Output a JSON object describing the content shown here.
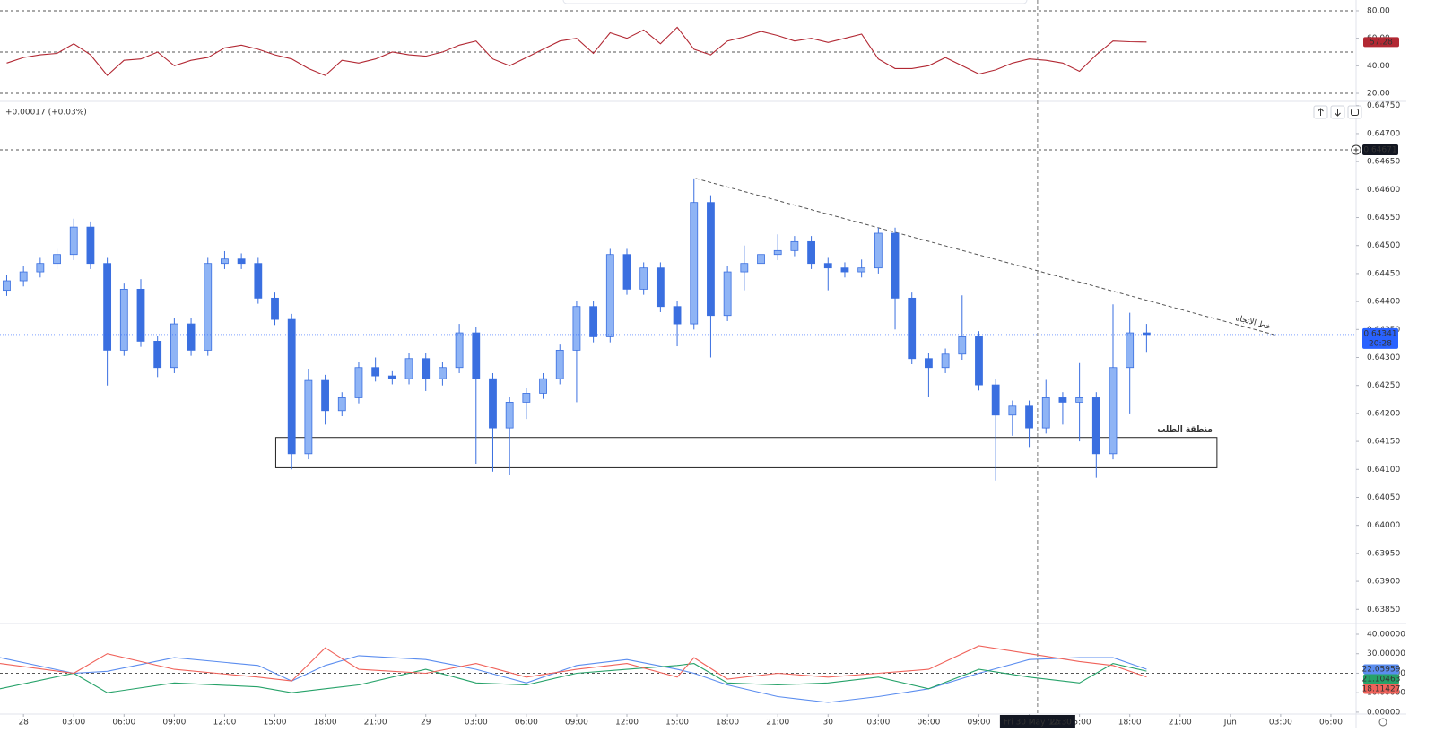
{
  "chart_data": [
    {
      "type": "line",
      "x": [
        -1,
        0,
        1,
        2,
        3,
        4,
        5,
        6,
        7,
        8,
        9,
        10,
        11,
        12,
        13,
        14,
        15,
        16,
        17,
        18,
        19,
        20,
        21,
        22,
        23,
        24,
        25,
        26,
        27,
        28,
        29,
        30,
        31,
        32,
        33,
        34,
        35,
        36,
        37,
        38,
        39,
        40,
        41,
        42,
        43,
        44,
        45,
        46,
        47,
        48,
        49,
        50,
        51,
        52,
        53,
        54,
        55,
        56,
        57,
        58,
        59,
        60,
        61,
        62,
        63,
        64,
        65,
        66,
        67
      ],
      "series": [
        {
          "color": "#b22833",
          "values": [
            42,
            46,
            48,
            49,
            56,
            48,
            33,
            44,
            45,
            50,
            40,
            44,
            46,
            53,
            55,
            52,
            48,
            45,
            38,
            33,
            44,
            42,
            45,
            50,
            48,
            47,
            50,
            55,
            58,
            45,
            40,
            46,
            52,
            58,
            60,
            49,
            64,
            60,
            66,
            56,
            68,
            52,
            48,
            58,
            61,
            65,
            62,
            58,
            60,
            57,
            60,
            63,
            45,
            38,
            38,
            40,
            46,
            40,
            34,
            37,
            42,
            45,
            44,
            42,
            36,
            48,
            58,
            57.5,
            57.28
          ]
        }
      ],
      "xlim": [
        -1.4,
        79.5
      ],
      "ylim": [
        14.8,
        87.8
      ],
      "yticks": [
        {
          "value": 80,
          "label": "80.00"
        },
        {
          "value": 60,
          "label": "60.00"
        },
        {
          "value": 40,
          "label": "40.00"
        },
        {
          "value": 20,
          "label": "20.00"
        }
      ],
      "bands": [
        80,
        50,
        20
      ],
      "last_badge": true
    },
    {
      "type": "candlestick",
      "x": [
        -1,
        0,
        1,
        2,
        3,
        4,
        5,
        6,
        7,
        8,
        9,
        10,
        11,
        12,
        13,
        14,
        15,
        16,
        17,
        18,
        19,
        20,
        21,
        22,
        23,
        24,
        25,
        26,
        27,
        28,
        29,
        30,
        31,
        32,
        33,
        34,
        35,
        36,
        37,
        38,
        39,
        40,
        41,
        42,
        43,
        44,
        45,
        46,
        47,
        48,
        49,
        50,
        51,
        52,
        53,
        54,
        55,
        56,
        57,
        58,
        59,
        60,
        61,
        62,
        63,
        64,
        65,
        66,
        67
      ],
      "ohlc": [
        [
          0.6442,
          0.64447,
          0.6441,
          0.64437
        ],
        [
          0.64437,
          0.64463,
          0.64427,
          0.64453
        ],
        [
          0.64453,
          0.64478,
          0.64443,
          0.64468
        ],
        [
          0.64468,
          0.64494,
          0.64458,
          0.64484
        ],
        [
          0.64484,
          0.64548,
          0.64474,
          0.64533
        ],
        [
          0.64533,
          0.64543,
          0.64458,
          0.64468
        ],
        [
          0.64468,
          0.64478,
          0.6425,
          0.64313
        ],
        [
          0.64313,
          0.64432,
          0.64303,
          0.64422
        ],
        [
          0.64422,
          0.6444,
          0.64319,
          0.64329
        ],
        [
          0.64329,
          0.64339,
          0.64265,
          0.64282
        ],
        [
          0.64282,
          0.6437,
          0.64272,
          0.6436
        ],
        [
          0.6436,
          0.6437,
          0.64303,
          0.64313
        ],
        [
          0.64313,
          0.64478,
          0.64303,
          0.64468
        ],
        [
          0.64468,
          0.6449,
          0.64458,
          0.64476
        ],
        [
          0.64476,
          0.64486,
          0.64458,
          0.64468
        ],
        [
          0.64468,
          0.64478,
          0.64396,
          0.64406
        ],
        [
          0.64406,
          0.64416,
          0.64358,
          0.64368
        ],
        [
          0.64368,
          0.64378,
          0.641,
          0.64128
        ],
        [
          0.64128,
          0.6428,
          0.64118,
          0.64259
        ],
        [
          0.64259,
          0.64269,
          0.6418,
          0.64205
        ],
        [
          0.64205,
          0.64238,
          0.64195,
          0.64228
        ],
        [
          0.64228,
          0.64292,
          0.64218,
          0.64282
        ],
        [
          0.64282,
          0.643,
          0.64257,
          0.64267
        ],
        [
          0.64267,
          0.64277,
          0.64252,
          0.64262
        ],
        [
          0.64262,
          0.64308,
          0.64252,
          0.64298
        ],
        [
          0.64298,
          0.64308,
          0.6424,
          0.64262
        ],
        [
          0.64262,
          0.64292,
          0.6425,
          0.64282
        ],
        [
          0.64282,
          0.6436,
          0.64272,
          0.64344
        ],
        [
          0.64344,
          0.64354,
          0.6411,
          0.64262
        ],
        [
          0.64262,
          0.64272,
          0.64096,
          0.64174
        ],
        [
          0.64174,
          0.6423,
          0.6409,
          0.6422
        ],
        [
          0.6422,
          0.64246,
          0.6419,
          0.64236
        ],
        [
          0.64236,
          0.64272,
          0.64226,
          0.64262
        ],
        [
          0.64262,
          0.64323,
          0.64252,
          0.64313
        ],
        [
          0.64313,
          0.64401,
          0.6422,
          0.64391
        ],
        [
          0.64391,
          0.64401,
          0.64327,
          0.64337
        ],
        [
          0.64337,
          0.64494,
          0.64327,
          0.64484
        ],
        [
          0.64484,
          0.64494,
          0.64412,
          0.64422
        ],
        [
          0.64422,
          0.6447,
          0.64412,
          0.6446
        ],
        [
          0.6446,
          0.6447,
          0.64381,
          0.64391
        ],
        [
          0.64391,
          0.64401,
          0.6432,
          0.6436
        ],
        [
          0.6436,
          0.6462,
          0.6435,
          0.64577
        ],
        [
          0.64577,
          0.6459,
          0.643,
          0.64375
        ],
        [
          0.64375,
          0.64463,
          0.64365,
          0.64453
        ],
        [
          0.64453,
          0.645,
          0.6442,
          0.64468
        ],
        [
          0.64468,
          0.6451,
          0.64458,
          0.64484
        ],
        [
          0.64484,
          0.6452,
          0.64474,
          0.64491
        ],
        [
          0.64491,
          0.64517,
          0.64481,
          0.64507
        ],
        [
          0.64507,
          0.64517,
          0.64458,
          0.64468
        ],
        [
          0.64468,
          0.64478,
          0.6442,
          0.6446
        ],
        [
          0.6446,
          0.6447,
          0.64443,
          0.64453
        ],
        [
          0.64453,
          0.64475,
          0.64443,
          0.6446
        ],
        [
          0.6446,
          0.64532,
          0.6445,
          0.64522
        ],
        [
          0.64522,
          0.64532,
          0.6435,
          0.64406
        ],
        [
          0.64406,
          0.64416,
          0.64288,
          0.64298
        ],
        [
          0.64298,
          0.64308,
          0.6423,
          0.64282
        ],
        [
          0.64282,
          0.64316,
          0.64272,
          0.64306
        ],
        [
          0.64306,
          0.64411,
          0.64296,
          0.64337
        ],
        [
          0.64337,
          0.64347,
          0.64241,
          0.64251
        ],
        [
          0.64251,
          0.64261,
          0.6408,
          0.64197
        ],
        [
          0.64197,
          0.64223,
          0.6416,
          0.64213
        ],
        [
          0.64213,
          0.64223,
          0.6414,
          0.64174
        ],
        [
          0.64174,
          0.6426,
          0.64164,
          0.64228
        ],
        [
          0.64228,
          0.64238,
          0.6418,
          0.6422
        ],
        [
          0.6422,
          0.6429,
          0.6415,
          0.64228
        ],
        [
          0.64228,
          0.64238,
          0.64085,
          0.64128
        ],
        [
          0.64128,
          0.64395,
          0.64118,
          0.64282
        ],
        [
          0.64282,
          0.6438,
          0.642,
          0.64344
        ],
        [
          0.64344,
          0.6436,
          0.6431,
          0.64341
        ]
      ],
      "up_color": "#8fb4f5",
      "down_color": "#3a6fe0",
      "xlim": [
        -1.4,
        79.5
      ],
      "ylim": [
        0.63828,
        0.64756
      ],
      "yticks": [
        {
          "value": 0.6475,
          "label": "0.64750"
        },
        {
          "value": 0.647,
          "label": "0.64700"
        },
        {
          "value": 0.6465,
          "label": "0.64650"
        },
        {
          "value": 0.646,
          "label": "0.64600"
        },
        {
          "value": 0.6455,
          "label": "0.64550"
        },
        {
          "value": 0.645,
          "label": "0.64500"
        },
        {
          "value": 0.6445,
          "label": "0.64450"
        },
        {
          "value": 0.644,
          "label": "0.64400"
        },
        {
          "value": 0.6435,
          "label": "0.64350"
        },
        {
          "value": 0.643,
          "label": "0.64300"
        },
        {
          "value": 0.6425,
          "label": "0.64250"
        },
        {
          "value": 0.642,
          "label": "0.64200"
        },
        {
          "value": 0.6415,
          "label": "0.64150"
        },
        {
          "value": 0.641,
          "label": "0.64100"
        },
        {
          "value": 0.6405,
          "label": "0.64050"
        },
        {
          "value": 0.64,
          "label": "0.64000"
        },
        {
          "value": 0.6395,
          "label": "0.63950"
        },
        {
          "value": 0.639,
          "label": "0.63900"
        },
        {
          "value": 0.6385,
          "label": "0.63850"
        }
      ],
      "xticks": [
        {
          "value": 0,
          "label": "28"
        },
        {
          "value": 3,
          "label": "03:00"
        },
        {
          "value": 6,
          "label": "06:00"
        },
        {
          "value": 9,
          "label": "09:00"
        },
        {
          "value": 12,
          "label": "12:00"
        },
        {
          "value": 15,
          "label": "15:00"
        },
        {
          "value": 18,
          "label": "18:00"
        },
        {
          "value": 21,
          "label": "21:00"
        },
        {
          "value": 24,
          "label": "29"
        },
        {
          "value": 27,
          "label": "03:00"
        },
        {
          "value": 30,
          "label": "06:00"
        },
        {
          "value": 33,
          "label": "09:00"
        },
        {
          "value": 36,
          "label": "12:00"
        },
        {
          "value": 39,
          "label": "15:00"
        },
        {
          "value": 42,
          "label": "18:00"
        },
        {
          "value": 45,
          "label": "21:00"
        },
        {
          "value": 48,
          "label": "30"
        },
        {
          "value": 51,
          "label": "03:00"
        },
        {
          "value": 54,
          "label": "06:00"
        },
        {
          "value": 57,
          "label": "09:00"
        },
        {
          "value": 60,
          "label": "12:00"
        },
        {
          "value": 63,
          "label": "15:00"
        },
        {
          "value": 66,
          "label": "18:00"
        },
        {
          "value": 69,
          "label": "21:00"
        },
        {
          "value": 72,
          "label": "Jun"
        },
        {
          "value": 75,
          "label": "03:00"
        },
        {
          "value": 78,
          "label": "06:00"
        }
      ],
      "change_label": "+0.00017 (+0.03%)",
      "alert_line": 0.64671,
      "countdown": "20:28",
      "zone": {
        "label": "منطقة الطلب",
        "x": [
          15.05,
          71.2
        ],
        "y": [
          0.64103,
          0.64157
        ]
      },
      "trendline": {
        "label": "خط الاتجاه",
        "x": [
          40.1,
          74.7
        ],
        "y": [
          0.6462,
          0.6434
        ]
      },
      "crosshair": {
        "x": 60.5,
        "date": "Fri 30 May '25",
        "time": "12:30"
      }
    },
    {
      "type": "line",
      "x": [
        -1.4,
        3,
        5,
        9,
        14,
        16,
        18,
        20,
        24,
        27,
        30,
        33,
        36,
        39,
        40,
        42,
        45,
        48,
        51,
        54,
        57,
        60,
        63,
        65,
        67
      ],
      "series": [
        {
          "color": "#5b8def",
          "values": [
            28,
            20,
            21,
            28,
            24,
            16,
            24,
            29,
            27,
            22,
            15,
            24,
            27,
            22,
            20,
            14,
            8,
            5,
            8,
            12,
            20,
            27,
            28,
            28,
            22.05959
          ]
        },
        {
          "color": "#26a269",
          "values": [
            12,
            20,
            10,
            15,
            13,
            10,
            12,
            14,
            22,
            15,
            14,
            20,
            22,
            24,
            25,
            15,
            14,
            15,
            18,
            12,
            22,
            18,
            15,
            25,
            21.10463
          ]
        },
        {
          "color": "#f0625a",
          "values": [
            25,
            20,
            30,
            22,
            18,
            16,
            33,
            22,
            20,
            25,
            18,
            22,
            25,
            18,
            28,
            17,
            20,
            18,
            20,
            22,
            34,
            30,
            26,
            24,
            18.11427
          ]
        }
      ],
      "xlim": [
        -1.4,
        79.5
      ],
      "ylim": [
        -0.5,
        44.6
      ],
      "yticks": [
        {
          "value": 40,
          "label": "40.00000"
        },
        {
          "value": 30,
          "label": "30.00000"
        },
        {
          "value": 20,
          "label": "20.00000"
        },
        {
          "value": 10,
          "label": "10.00000"
        },
        {
          "value": 0,
          "label": "0.00000"
        }
      ],
      "bands": [
        20
      ],
      "last_badge": true
    }
  ]
}
